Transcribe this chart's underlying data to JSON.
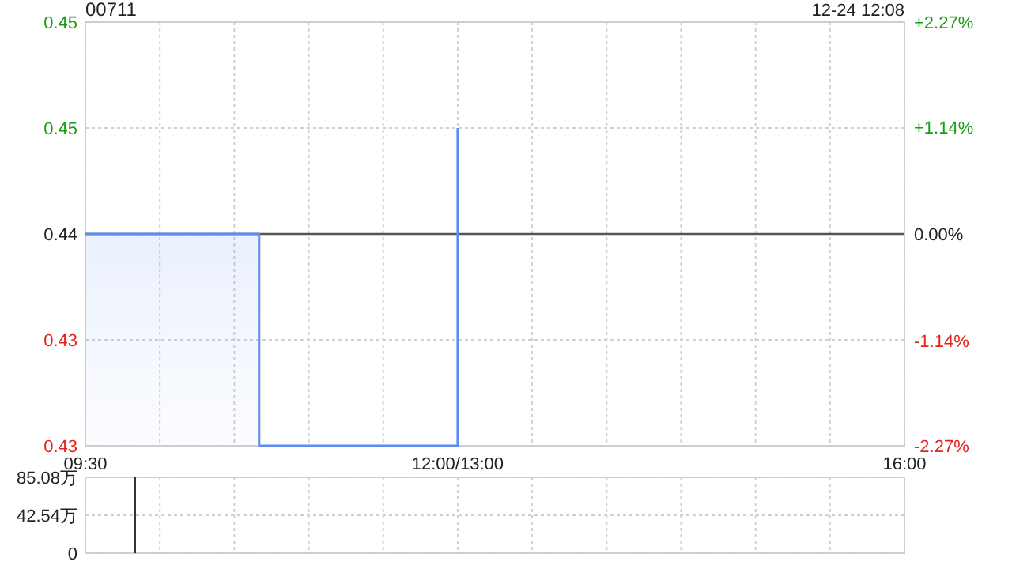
{
  "chart_data": [
    {
      "type": "step",
      "title": "00711",
      "annotations": [
        "12-24 12:08"
      ],
      "categories": [
        "09:30",
        null,
        null,
        null,
        null,
        null,
        null,
        null,
        null,
        null,
        null,
        null,
        null,
        null,
        null,
        null,
        null,
        null,
        null,
        null,
        null,
        null,
        null,
        null,
        null,
        null,
        null,
        null,
        null,
        null,
        "12:00/13:00",
        null,
        null,
        null,
        null,
        null,
        null,
        null,
        null,
        null,
        null,
        null,
        null,
        null,
        null,
        null,
        null,
        null,
        null,
        null,
        null,
        null,
        null,
        null,
        null,
        null,
        null,
        null,
        null,
        null,
        null,
        null,
        null,
        null,
        null,
        null,
        "16:00"
      ],
      "ylim": [
        0.43,
        0.45
      ],
      "yticks": [
        {
          "value": 0.43,
          "label": "0.43"
        },
        {
          "value": 0.435,
          "label": "0.43"
        },
        {
          "value": 0.44,
          "label": "0.44"
        },
        {
          "value": 0.445,
          "label": "0.45"
        },
        {
          "value": 0.45,
          "label": "0.45"
        }
      ],
      "y2lim": [
        -2.27,
        2.27
      ],
      "y2ticks": [
        {
          "value": -2.27,
          "label": "-2.27%"
        },
        {
          "value": -1.14,
          "label": "-1.14%"
        },
        {
          "value": 0,
          "label": "0.00%"
        },
        {
          "value": 1.14,
          "label": "+1.14%"
        },
        {
          "value": 2.27,
          "label": "+2.27%"
        }
      ],
      "series": [
        {
          "color": "#5b8def",
          "values": [
            0.44,
            0.44,
            0.44,
            0.44,
            0.44,
            0.44,
            0.44,
            0.44,
            0.44,
            0.44,
            0.44,
            0.44,
            0.44,
            0.44,
            0.43,
            0.43,
            0.43,
            0.43,
            0.43,
            0.43,
            0.43,
            0.43,
            0.43,
            0.43,
            0.43,
            0.43,
            0.43,
            0.43,
            0.43,
            0.43,
            0.445,
            null,
            null,
            null,
            null,
            null,
            null,
            null,
            null,
            null,
            null,
            null,
            null,
            null,
            null,
            null,
            null,
            null,
            null,
            null,
            null,
            null,
            null,
            null,
            null,
            null,
            null,
            null,
            null,
            null,
            null,
            null,
            null,
            null,
            null,
            null,
            null
          ]
        }
      ],
      "ref_lines": [
        {
          "axis": "y",
          "value": 0.44,
          "color": "#555555"
        }
      ],
      "grid": true
    },
    {
      "type": "bar",
      "categories": [
        null,
        null,
        null,
        null,
        null,
        null,
        null,
        null,
        null,
        null,
        null,
        null,
        null,
        null,
        null,
        null,
        null,
        null,
        null,
        null,
        null,
        null,
        null,
        null,
        null,
        null,
        null,
        null,
        null,
        null,
        null,
        null,
        null,
        null,
        null,
        null,
        null,
        null,
        null,
        null,
        null,
        null,
        null,
        null,
        null,
        null,
        null,
        null,
        null,
        null,
        null,
        null,
        null,
        null,
        null,
        null,
        null,
        null,
        null,
        null,
        null,
        null,
        null,
        null,
        null,
        null,
        null
      ],
      "ylim": [
        0,
        85.08
      ],
      "yticks": [
        {
          "value": 0,
          "label": "0"
        },
        {
          "value": 42.54,
          "label": "42.54万"
        },
        {
          "value": 85.08,
          "label": "85.08万"
        }
      ],
      "series": [
        {
          "color": "#333333",
          "values": [
            null,
            null,
            null,
            null,
            85.08,
            null,
            null,
            null,
            null,
            null,
            null,
            null,
            null,
            null,
            null,
            null,
            null,
            null,
            null,
            null,
            null,
            null,
            null,
            null,
            null,
            null,
            null,
            null,
            null,
            null,
            null,
            null,
            null,
            null,
            null,
            null,
            null,
            null,
            null,
            null,
            null,
            null,
            null,
            null,
            null,
            null,
            null,
            null,
            null,
            null,
            null,
            null,
            null,
            null,
            null,
            null,
            null,
            null,
            null,
            null,
            null,
            null,
            null,
            null,
            null,
            null,
            null
          ]
        }
      ],
      "tick_labels": "y",
      "grid": true
    }
  ]
}
